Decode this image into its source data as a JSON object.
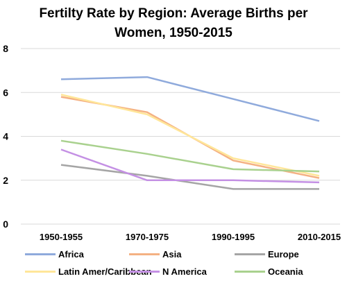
{
  "title_line1": "Fertilty Rate by Region: Average Births per",
  "title_line2": "Women, 1950-2015",
  "chart_data": {
    "type": "line",
    "title": "Fertilty Rate by Region: Average Births per Women, 1950-2015",
    "xlabel": "",
    "ylabel": "",
    "categories": [
      "1950-1955",
      "1970-1975",
      "1990-1995",
      "2010-2015"
    ],
    "ylim": [
      0,
      8
    ],
    "yticks": [
      0,
      2,
      4,
      6,
      8
    ],
    "grid": true,
    "legend_position": "bottom",
    "series": [
      {
        "name": "Africa",
        "color": "#8FAADC",
        "values": [
          6.6,
          6.7,
          5.7,
          4.7
        ]
      },
      {
        "name": "Asia",
        "color": "#F4B183",
        "values": [
          5.8,
          5.1,
          2.9,
          2.1
        ]
      },
      {
        "name": "Europe",
        "color": "#A5A5A5",
        "values": [
          2.7,
          2.2,
          1.6,
          1.6
        ]
      },
      {
        "name": "Latin Amer/Caribbean",
        "color": "#FFE699",
        "values": [
          5.9,
          5.0,
          3.0,
          2.2
        ]
      },
      {
        "name": "N America",
        "color": "#C490E4",
        "values": [
          3.4,
          2.0,
          2.0,
          1.9
        ]
      },
      {
        "name": "Oceania",
        "color": "#A9D18E",
        "values": [
          3.8,
          3.2,
          2.5,
          2.4
        ]
      }
    ]
  }
}
